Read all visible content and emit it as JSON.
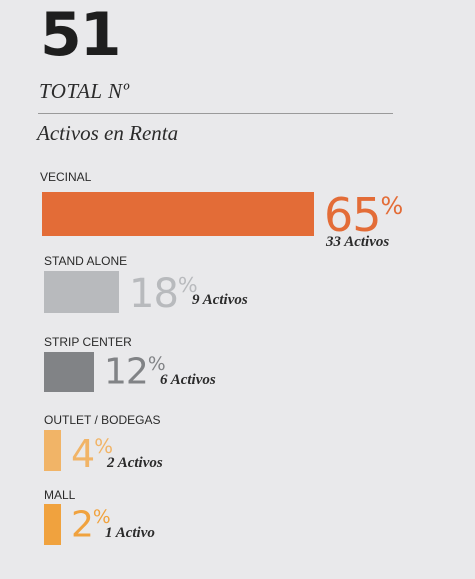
{
  "total": {
    "value": "51",
    "label": "TOTAL Nº"
  },
  "subtitle": "Activos en Renta",
  "percent_sign": "%",
  "chart_data": {
    "type": "bar",
    "orientation": "horizontal",
    "title": "Activos en Renta",
    "categories": [
      "VECINAL",
      "STAND ALONE",
      "STRIP CENTER",
      "OUTLET / BODEGAS",
      "MALL"
    ],
    "values": [
      65,
      18,
      12,
      4,
      2
    ],
    "value_labels": [
      "65",
      "18",
      "12",
      "4",
      "2"
    ],
    "counts": [
      33,
      9,
      6,
      2,
      1
    ],
    "count_labels": [
      "33 Activos",
      "9 Activos",
      "6 Activos",
      "2 Activos",
      "1 Activo"
    ],
    "colors": [
      "#e36c37",
      "#b8babd",
      "#818386",
      "#f1b467",
      "#f0a23e"
    ],
    "text_colors": [
      "#e36c37",
      "#b8babd",
      "#818386",
      "#f1b467",
      "#f0a23e"
    ]
  }
}
